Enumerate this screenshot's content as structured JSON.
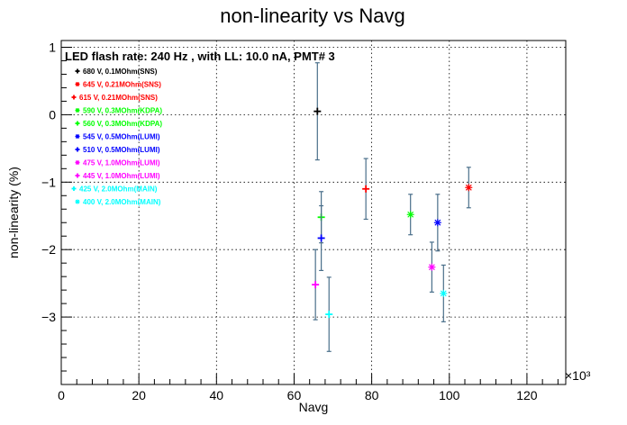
{
  "chart_data": {
    "type": "scatter",
    "title": "non-linearity vs Navg",
    "xlabel": "Navg",
    "ylabel": "non-linearity (%)",
    "x_exponent_label": "×10³",
    "annotation": "LED flash rate: 240 Hz , with LL: 10.0 nA, PMT# 3",
    "xlim": [
      0,
      130
    ],
    "ylim": [
      -4.0,
      1.1
    ],
    "x_ticks": [
      0,
      20,
      40,
      60,
      80,
      100,
      120
    ],
    "y_ticks": [
      1,
      0,
      -1,
      -2,
      -3
    ],
    "grid": true,
    "legend_position": "top-left",
    "series": [
      {
        "name": "680 V, 0.1MOhm(SNS)",
        "color": "#000000",
        "marker": "plus",
        "x": 66.0,
        "y": 0.05,
        "yerr": 0.72
      },
      {
        "name": "645 V, 0.21MOhm(SNS)",
        "color": "#ff0000",
        "marker": "star",
        "x": 105.0,
        "y": -1.08,
        "yerr": 0.3
      },
      {
        "name": "615 V, 0.21MOhm(SNS)",
        "color": "#ff0000",
        "marker": "plus",
        "x": 78.5,
        "y": -1.1,
        "yerr": 0.45
      },
      {
        "name": "590 V, 0.3MOhm(KDPA)",
        "color": "#00ff00",
        "marker": "star",
        "x": 90.0,
        "y": -1.48,
        "yerr": 0.3
      },
      {
        "name": "560 V, 0.3MOhm(KDPA)",
        "color": "#00ff00",
        "marker": "plus",
        "x": 67.0,
        "y": -1.52,
        "yerr": 0.38
      },
      {
        "name": "545 V, 0.5MOhm(LUMI)",
        "color": "#0000ff",
        "marker": "star",
        "x": 97.0,
        "y": -1.6,
        "yerr": 0.42
      },
      {
        "name": "510 V, 0.5MOhm(LUMI)",
        "color": "#0000ff",
        "marker": "plus",
        "x": 67.0,
        "y": -1.83,
        "yerr": 0.48
      },
      {
        "name": "475 V, 1.0MOhm(LUMI)",
        "color": "#ff00ff",
        "marker": "star",
        "x": 95.5,
        "y": -2.26,
        "yerr": 0.37
      },
      {
        "name": "445 V, 1.0MOhm(LUMI)",
        "color": "#ff00ff",
        "marker": "plus",
        "x": 65.5,
        "y": -2.52,
        "yerr": 0.52
      },
      {
        "name": "425 V, 2.0MOhm(MAIN)",
        "color": "#00ffff",
        "marker": "plus",
        "x": 69.0,
        "y": -2.96,
        "yerr": 0.55
      },
      {
        "name": "400 V, 2.0MOhm(MAIN)",
        "color": "#00ffff",
        "marker": "star",
        "x": 98.5,
        "y": -2.65,
        "yerr": 0.42
      }
    ]
  }
}
